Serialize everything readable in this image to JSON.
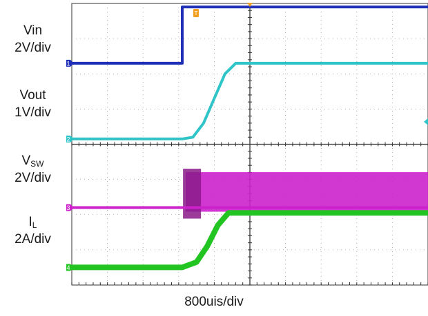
{
  "channels": [
    {
      "name": "Vin",
      "sub": "",
      "scale": "2V/div",
      "color": "#1f2fb8",
      "marker": "1"
    },
    {
      "name": "Vout",
      "sub": "",
      "scale": "1V/div",
      "color": "#2ec4c8",
      "marker": "2"
    },
    {
      "name": "V",
      "sub": "SW",
      "scale": "2V/div",
      "color": "#cc22cc",
      "marker": "3"
    },
    {
      "name": "I",
      "sub": "L",
      "scale": "2A/div",
      "color": "#22c422",
      "marker": "4"
    }
  ],
  "timebase": "800uis/div",
  "trigger_marker": "T",
  "chart_data": {
    "type": "line",
    "title": "",
    "xlabel": "800uis/div",
    "ylabel": "",
    "grid": true,
    "x_divisions": 10,
    "y_divisions": 8,
    "x_units": "div",
    "x_range": [
      0,
      10
    ],
    "series": [
      {
        "name": "Vin",
        "scale": "2V/div",
        "color": "#1f2fb8",
        "x": [
          0,
          3.1,
          3.1,
          10
        ],
        "y": [
          6.3,
          6.3,
          7.9,
          7.9
        ]
      },
      {
        "name": "Vout",
        "scale": "1V/div",
        "color": "#2ec4c8",
        "x": [
          0,
          3.1,
          3.4,
          3.7,
          4.0,
          4.3,
          4.6,
          10
        ],
        "y": [
          4.15,
          4.15,
          4.2,
          4.6,
          5.3,
          6.0,
          6.3,
          6.3
        ]
      },
      {
        "name": "VSW",
        "scale": "2V/div",
        "color": "#cc22cc",
        "x": [
          0,
          3.2,
          3.3,
          10
        ],
        "y": [
          2.2,
          2.2,
          3.05,
          3.05
        ],
        "switching_from": 3.2,
        "switching_low": 2.2
      },
      {
        "name": "IL",
        "scale": "2A/div",
        "color": "#22c422",
        "x": [
          0,
          3.1,
          3.5,
          3.8,
          4.1,
          4.4,
          10
        ],
        "y": [
          0.5,
          0.5,
          0.65,
          1.1,
          1.7,
          2.05,
          2.05
        ]
      }
    ]
  }
}
